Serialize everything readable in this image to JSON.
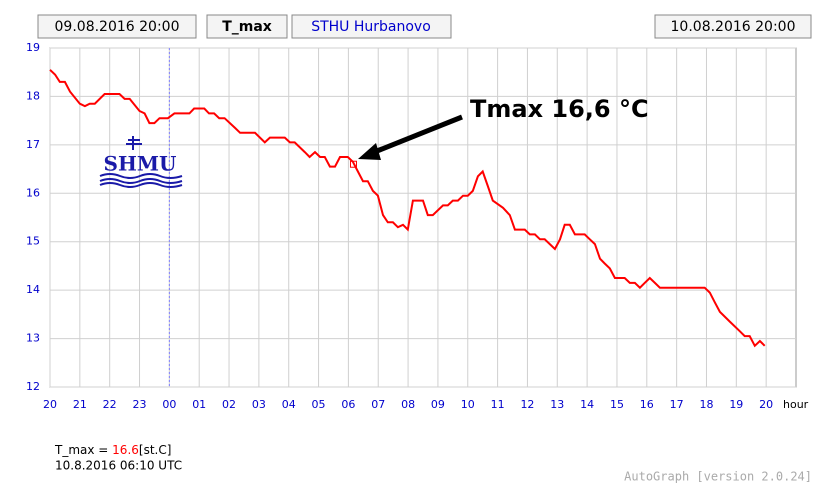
{
  "chart_data": {
    "type": "line",
    "start_time": "09.08.2016 20:00",
    "parameter": "T_max",
    "station": "STHU Hurbanovo",
    "end_time": "10.08.2016 20:00",
    "logo": "SHMU",
    "annotation": "Tmax 16,6 °C",
    "x_label": "hour",
    "x": [
      0,
      0.17,
      0.33,
      0.5,
      0.67,
      1.0,
      1.17,
      1.33,
      1.5,
      1.83,
      2.33,
      2.5,
      2.67,
      3.0,
      3.17,
      3.33,
      3.5,
      3.67,
      3.95,
      4.17,
      4.67,
      4.83,
      5.17,
      5.33,
      5.5,
      5.67,
      5.85,
      6.2,
      6.37,
      6.87,
      7.2,
      7.37,
      7.87,
      8.04,
      8.2,
      8.54,
      8.7,
      8.88,
      9.05,
      9.21,
      9.38,
      9.55,
      9.72,
      9.98,
      10.15,
      10.32,
      10.49,
      10.65,
      10.82,
      10.99,
      11.16,
      11.32,
      11.49,
      11.66,
      11.83,
      11.99,
      12.16,
      12.5,
      12.66,
      12.83,
      13.17,
      13.33,
      13.5,
      13.67,
      13.84,
      14.0,
      14.17,
      14.34,
      14.5,
      14.67,
      14.84,
      15.18,
      15.41,
      15.58,
      15.91,
      16.08,
      16.25,
      16.42,
      16.58,
      16.75,
      16.92,
      17.09,
      17.25,
      17.42,
      17.59,
      17.92,
      18.09,
      18.26,
      18.43,
      18.59,
      18.76,
      18.93,
      19.26,
      19.43,
      19.6,
      19.77,
      19.93,
      20.1,
      20.27,
      20.44,
      21.94,
      22.11,
      22.28,
      22.45,
      22.78,
      23.12,
      23.28,
      23.45,
      23.62,
      23.79,
      23.95
    ],
    "series": [
      {
        "color": "#ff0000",
        "values": [
          18.55,
          18.45,
          18.3,
          18.3,
          18.1,
          17.85,
          17.8,
          17.85,
          17.85,
          18.05,
          18.05,
          17.95,
          17.95,
          17.7,
          17.65,
          17.45,
          17.45,
          17.55,
          17.55,
          17.65,
          17.65,
          17.75,
          17.75,
          17.65,
          17.65,
          17.55,
          17.55,
          17.35,
          17.25,
          17.25,
          17.05,
          17.15,
          17.15,
          17.05,
          17.05,
          16.85,
          16.75,
          16.85,
          16.75,
          16.75,
          16.55,
          16.55,
          16.75,
          16.75,
          16.65,
          16.45,
          16.25,
          16.25,
          16.05,
          15.95,
          15.55,
          15.4,
          15.4,
          15.3,
          15.35,
          15.25,
          15.85,
          15.85,
          15.55,
          15.55,
          15.75,
          15.75,
          15.85,
          15.85,
          15.95,
          15.95,
          16.05,
          16.35,
          16.45,
          16.15,
          15.85,
          15.7,
          15.55,
          15.25,
          15.25,
          15.15,
          15.15,
          15.05,
          15.05,
          14.95,
          14.85,
          15.05,
          15.35,
          15.35,
          15.15,
          15.15,
          15.05,
          14.95,
          14.65,
          14.55,
          14.45,
          14.25,
          14.25,
          14.15,
          14.15,
          14.05,
          14.15,
          14.25,
          14.15,
          14.05,
          14.05,
          13.95,
          13.75,
          13.55,
          13.35,
          13.15,
          13.05,
          13.05,
          12.85,
          12.95,
          12.85
        ]
      }
    ],
    "highlight": {
      "x": 10.17,
      "y": 16.6,
      "color": "#ff0000"
    },
    "vline": {
      "x": 4,
      "color": "#8080ff"
    },
    "xlim": [
      0,
      25
    ],
    "xticks": [
      {
        "value": 0,
        "label": "20"
      },
      {
        "value": 1,
        "label": "21"
      },
      {
        "value": 2,
        "label": "22"
      },
      {
        "value": 3,
        "label": "23"
      },
      {
        "value": 4,
        "label": "00"
      },
      {
        "value": 5,
        "label": "01"
      },
      {
        "value": 6,
        "label": "02"
      },
      {
        "value": 7,
        "label": "03"
      },
      {
        "value": 8,
        "label": "04"
      },
      {
        "value": 9,
        "label": "05"
      },
      {
        "value": 10,
        "label": "06"
      },
      {
        "value": 11,
        "label": "07"
      },
      {
        "value": 12,
        "label": "08"
      },
      {
        "value": 13,
        "label": "09"
      },
      {
        "value": 14,
        "label": "10"
      },
      {
        "value": 15,
        "label": "11"
      },
      {
        "value": 16,
        "label": "12"
      },
      {
        "value": 17,
        "label": "13"
      },
      {
        "value": 18,
        "label": "14"
      },
      {
        "value": 19,
        "label": "15"
      },
      {
        "value": 20,
        "label": "16"
      },
      {
        "value": 21,
        "label": "17"
      },
      {
        "value": 22,
        "label": "18"
      },
      {
        "value": 23,
        "label": "19"
      },
      {
        "value": 24,
        "label": "20"
      }
    ],
    "ylim": [
      12,
      19
    ],
    "yticks": [
      12,
      13,
      14,
      15,
      16,
      17,
      18,
      19
    ],
    "grid": true,
    "readout": {
      "label": "T_max = ",
      "value": "16.6",
      "unit": "[st.C]",
      "time": "10.8.2016 06:10 UTC"
    },
    "footer": "AutoGraph [version 2.0.24]"
  }
}
